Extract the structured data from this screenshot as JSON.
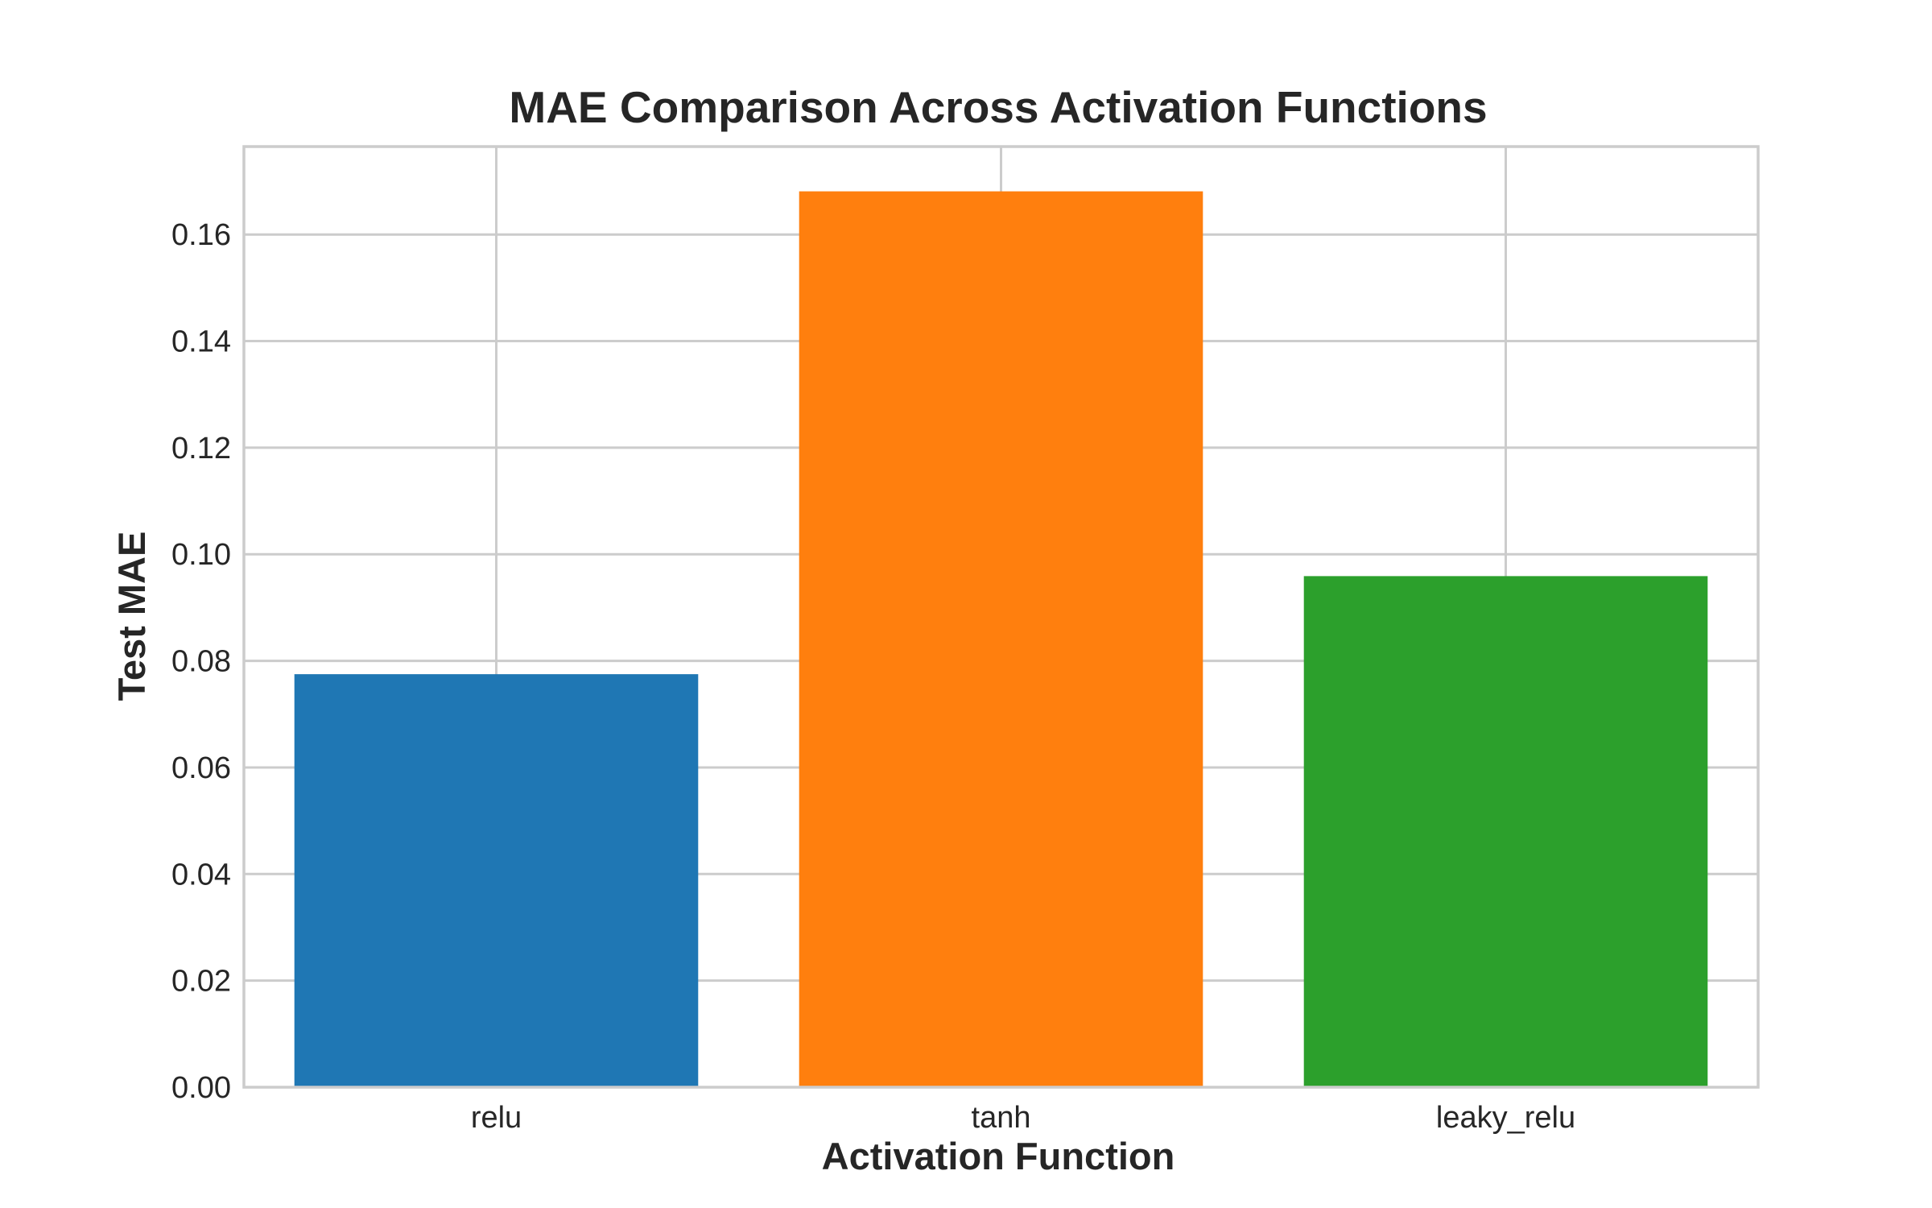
{
  "chart_data": {
    "type": "bar",
    "title": "MAE Comparison Across Activation Functions",
    "xlabel": "Activation Function",
    "ylabel": "Test MAE",
    "categories": [
      "relu",
      "tanh",
      "leaky_relu"
    ],
    "values": [
      0.0775,
      0.1681,
      0.0959
    ],
    "colors": [
      "#1f77b4",
      "#ff7f0e",
      "#2ca02c"
    ],
    "ylim": [
      0,
      0.1765
    ],
    "yticks": [
      0.0,
      0.02,
      0.04,
      0.06,
      0.08,
      0.1,
      0.12,
      0.14,
      0.16
    ],
    "ytick_labels": [
      "0.00",
      "0.02",
      "0.04",
      "0.06",
      "0.08",
      "0.10",
      "0.12",
      "0.14",
      "0.16"
    ],
    "grid": true,
    "legend": "none"
  }
}
